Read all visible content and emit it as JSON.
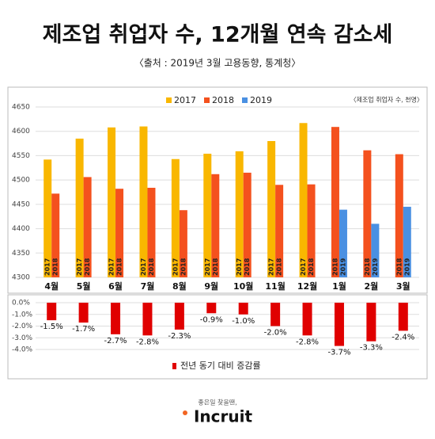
{
  "title": "제조업 취업자 수, 12개월 연속 감소세",
  "subtitle": "〈출처 : 2019년 3월 고용동향, 통계청〉",
  "chart_data": [
    {
      "type": "bar",
      "note": "〈제조업 취업자 수, 천명〉",
      "categories": [
        "4월",
        "5월",
        "6월",
        "7월",
        "8월",
        "9월",
        "10월",
        "11월",
        "12월",
        "1월",
        "2월",
        "3월"
      ],
      "series": [
        {
          "name": "2017",
          "color": "#f9b700",
          "values": [
            4542,
            4585,
            4608,
            4610,
            4543,
            4554,
            4559,
            4580,
            4617,
            null,
            null,
            null
          ]
        },
        {
          "name": "2018",
          "color": "#f4511e",
          "values": [
            4472,
            4506,
            4482,
            4484,
            4438,
            4512,
            4515,
            4490,
            4491,
            4609,
            4561,
            4553
          ]
        },
        {
          "name": "2019",
          "color": "#4a90e2",
          "values": [
            null,
            null,
            null,
            null,
            null,
            null,
            null,
            null,
            null,
            4439,
            4410,
            4445
          ]
        }
      ],
      "ylim": [
        4300,
        4650
      ],
      "yticks": [
        4300,
        4350,
        4400,
        4450,
        4500,
        4550,
        4600,
        4650
      ],
      "grid": true
    },
    {
      "type": "bar",
      "series": [
        {
          "name": "전년 동기 대비 증감률",
          "color": "#e00000",
          "values": [
            -1.5,
            -1.7,
            -2.7,
            -2.8,
            -2.3,
            -0.9,
            -1.0,
            -2.0,
            -2.8,
            -3.7,
            -3.3,
            -2.4
          ],
          "value_labels": [
            "-1.5%",
            "-1.7%",
            "-2.7%",
            "-2.8%",
            "-2.3%",
            "-0.9%",
            "-1.0%",
            "-2.0%",
            "-2.8%",
            "-3.7%",
            "-3.3%",
            "-2.4%"
          ]
        }
      ],
      "ylim": [
        -4.0,
        0.0
      ],
      "yticks": [
        {
          "value": 0,
          "label": "0.0%"
        },
        {
          "value": -1,
          "label": "-1.0%"
        },
        {
          "value": -2,
          "label": "-2.0%"
        },
        {
          "value": -3,
          "label": "-3.0%"
        },
        {
          "value": -4,
          "label": "-4.0%"
        }
      ],
      "grid": true
    }
  ],
  "footer": {
    "slogan": "좋은일 찾을땐,",
    "logo": "Incruit"
  }
}
